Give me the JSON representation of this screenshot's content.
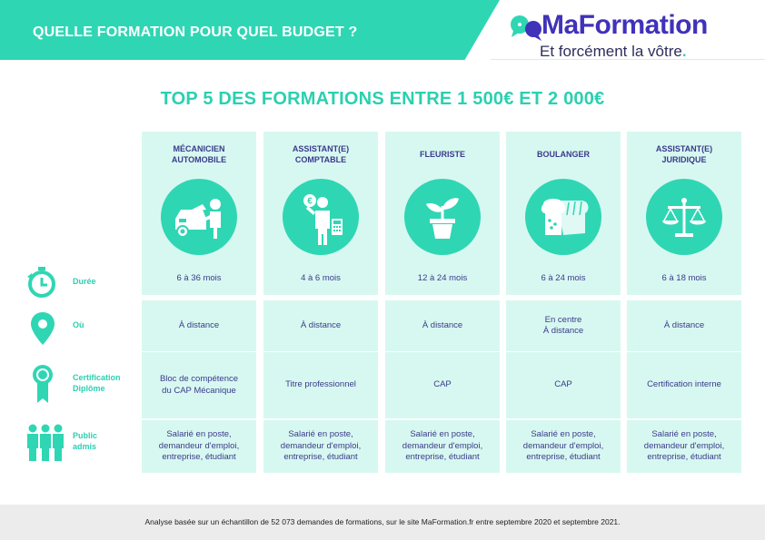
{
  "header": {
    "banner_text": "QUELLE FORMATION POUR QUEL BUDGET ?",
    "logo_name": "MaFormation",
    "logo_tagline": "Et forcément la vôtre",
    "logo_dot": "."
  },
  "title": "TOP 5 DES FORMATIONS ENTRE 1 500€ ET 2 000€",
  "rows": {
    "duree": "Durée",
    "ou": "Où",
    "certification": "Certification\nDiplôme",
    "public": "Public\nadmis"
  },
  "formations": [
    {
      "name": "MÉCANICIEN\nAUTOMOBILE",
      "icon": "car-mechanic-icon",
      "duree": "6 à 36 mois",
      "ou": "À distance",
      "certification": "Bloc de compétence\ndu CAP Mécanique",
      "public": "Salarié en poste,\ndemandeur d'emploi,\nentreprise, étudiant"
    },
    {
      "name": "ASSISTANT(E)\nCOMPTABLE",
      "icon": "accountant-icon",
      "duree": "4 à 6 mois",
      "ou": "À distance",
      "certification": "Titre professionnel",
      "public": "Salarié en poste,\ndemandeur d'emploi,\nentreprise, étudiant"
    },
    {
      "name": "FLEURISTE",
      "icon": "plant-pot-icon",
      "duree": "12 à 24 mois",
      "ou": "À distance",
      "certification": "CAP",
      "public": "Salarié en poste,\ndemandeur d'emploi,\nentreprise, étudiant"
    },
    {
      "name": "BOULANGER",
      "icon": "bread-icon",
      "duree": "6 à 24 mois",
      "ou": "En centre\nÀ distance",
      "certification": "CAP",
      "public": "Salarié en poste,\ndemandeur d'emploi,\nentreprise, étudiant"
    },
    {
      "name": "ASSISTANT(E)\nJURIDIQUE",
      "icon": "scales-icon",
      "duree": "6 à 18 mois",
      "ou": "À distance",
      "certification": "Certification interne",
      "public": "Salarié en poste,\ndemandeur d'emploi,\nentreprise, étudiant"
    }
  ],
  "footer": "Analyse basée sur un échantillon de 52 073 demandes de formations, sur le site MaFormation.fr entre septembre 2020 et septembre 2021.",
  "colors": {
    "accent": "#2fd6b4",
    "brand": "#4032b9",
    "cell": "#d7f8f0",
    "text": "#3b3a8c"
  }
}
